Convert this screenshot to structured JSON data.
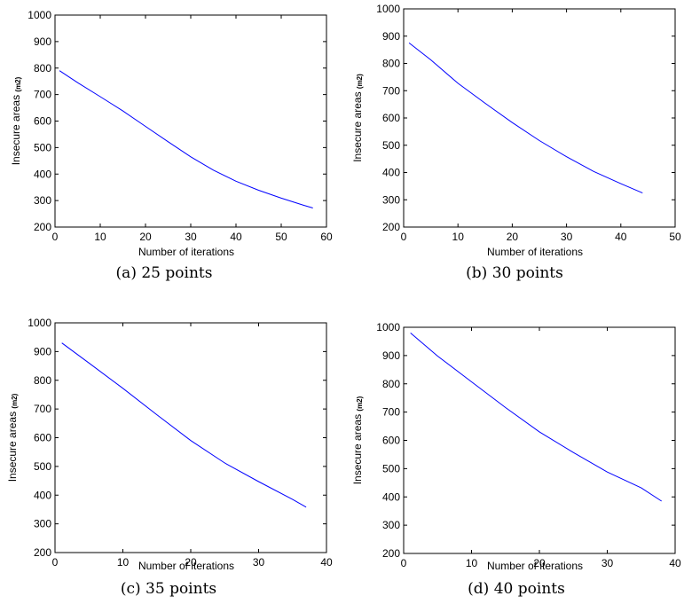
{
  "chart_data": [
    {
      "type": "line",
      "caption": "(a) 25 points",
      "xlabel": "Number of iterations",
      "ylabel": "Insecure areas",
      "ylabel_unit": "(m2)",
      "xlim": [
        0,
        60
      ],
      "ylim": [
        200,
        1000
      ],
      "xticks": [
        0,
        10,
        20,
        30,
        40,
        50,
        60
      ],
      "yticks": [
        200,
        300,
        400,
        500,
        600,
        700,
        800,
        900,
        1000
      ],
      "grid": false,
      "series": [
        {
          "color": "#0000ff",
          "x": [
            1,
            5,
            10,
            15,
            20,
            25,
            30,
            35,
            40,
            45,
            50,
            55,
            57
          ],
          "y": [
            790,
            745,
            692,
            638,
            580,
            522,
            465,
            415,
            373,
            339,
            309,
            282,
            272
          ]
        }
      ]
    },
    {
      "type": "line",
      "caption": "(b) 30 points",
      "xlabel": "Number of iterations",
      "ylabel": "Insecure areas",
      "ylabel_unit": "(m2)",
      "xlim": [
        0,
        50
      ],
      "ylim": [
        200,
        1000
      ],
      "xticks": [
        0,
        10,
        20,
        30,
        40,
        50
      ],
      "yticks": [
        200,
        300,
        400,
        500,
        600,
        700,
        800,
        900,
        1000
      ],
      "grid": false,
      "series": [
        {
          "color": "#0000ff",
          "x": [
            1,
            5,
            10,
            15,
            20,
            25,
            30,
            35,
            40,
            44
          ],
          "y": [
            875,
            813,
            727,
            654,
            583,
            517,
            458,
            404,
            359,
            325
          ]
        }
      ]
    },
    {
      "type": "line",
      "caption": "(c) 35 points",
      "xlabel": "Number of iterations",
      "ylabel": "Insecure areas",
      "ylabel_unit": "(m2)",
      "xlim": [
        0,
        40
      ],
      "ylim": [
        200,
        1000
      ],
      "xticks": [
        0,
        10,
        20,
        30,
        40
      ],
      "yticks": [
        200,
        300,
        400,
        500,
        600,
        700,
        800,
        900,
        1000
      ],
      "grid": false,
      "series": [
        {
          "color": "#0000ff",
          "x": [
            1,
            5,
            10,
            15,
            20,
            25,
            30,
            35,
            37
          ],
          "y": [
            930,
            860,
            772,
            680,
            590,
            512,
            447,
            385,
            358
          ]
        }
      ]
    },
    {
      "type": "line",
      "caption": "(d) 40 points",
      "xlabel": "Number of iterations",
      "ylabel": "Insecure areas",
      "ylabel_unit": "(m2)",
      "xlim": [
        0,
        40
      ],
      "ylim": [
        200,
        1000
      ],
      "xticks": [
        0,
        10,
        20,
        30,
        40
      ],
      "yticks": [
        200,
        300,
        400,
        500,
        600,
        700,
        800,
        900,
        1000
      ],
      "grid": false,
      "series": [
        {
          "color": "#0000ff",
          "x": [
            1,
            5,
            10,
            15,
            20,
            25,
            30,
            35,
            38
          ],
          "y": [
            980,
            898,
            807,
            716,
            630,
            557,
            488,
            432,
            385
          ]
        }
      ]
    }
  ]
}
